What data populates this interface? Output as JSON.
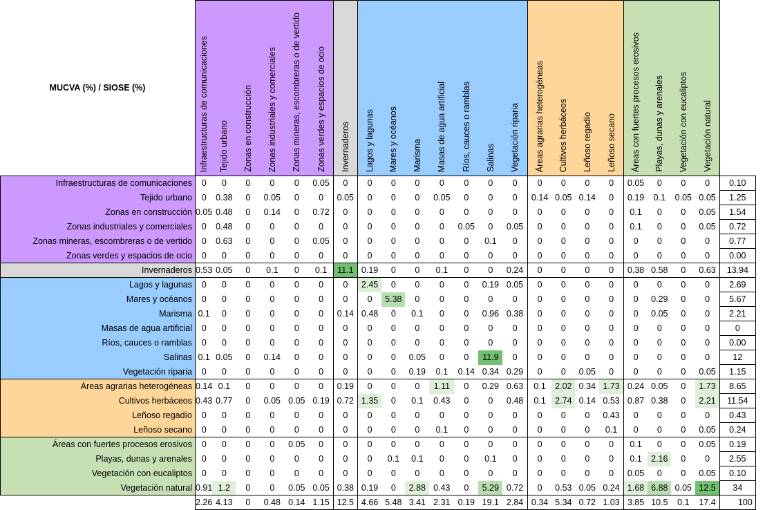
{
  "corner_label": "MUCVA  (%) / SIOSE (%)",
  "columns": [
    "Infraestructuras de comunicaciones",
    "Tejido urbano",
    "Zonas en construcción",
    "Zonas industriales y comerciales",
    "Zonas mineras, escombreras o de vertido",
    "Zonas verdes y espacios de ocio",
    "Invernaderos",
    "Lagos y lagunas",
    "Mares y océanos",
    "Marisma",
    "Masas de agua artificial",
    "Ríos, cauces o ramblas",
    "Salinas",
    "Vegetación riparia",
    "Áreas agrarias heterogéneas",
    "Cultivos herbáceos",
    "Leñoso regadío",
    "Leñoso secano",
    "Áreas con fuertes procesos erosivos",
    "Playas, dunas y arenales",
    "Vegetación con eucaliptos",
    "Vegetación natural"
  ],
  "rows": [
    {
      "label": "Infraestructuras de comunicaciones",
      "values": [
        "0",
        "0",
        "0",
        "0",
        "0",
        "0.05",
        "0",
        "0",
        "0",
        "0",
        "0",
        "0",
        "0",
        "0",
        "0",
        "0",
        "0",
        "0",
        "0.05",
        "0",
        "0",
        "0"
      ],
      "total": "0.10"
    },
    {
      "label": "Tejido urbano",
      "values": [
        "0",
        "0.38",
        "0",
        "0.05",
        "0",
        "0",
        "0.05",
        "0",
        "0",
        "0",
        "0.05",
        "0",
        "0",
        "0",
        "0.14",
        "0.05",
        "0.14",
        "0",
        "0.19",
        "0.1",
        "0.05",
        "0.05"
      ],
      "total": "1.25"
    },
    {
      "label": "Zonas en construcción",
      "values": [
        "0.05",
        "0.48",
        "0",
        "0.14",
        "0",
        "0.72",
        "0",
        "0",
        "0",
        "0",
        "0",
        "0",
        "0",
        "0",
        "0",
        "0",
        "0",
        "0",
        "0.1",
        "0",
        "0",
        "0.05"
      ],
      "total": "1.54"
    },
    {
      "label": "Zonas industriales y comerciales",
      "values": [
        "0",
        "0.48",
        "0",
        "0",
        "0",
        "0",
        "0",
        "0",
        "0",
        "0",
        "0",
        "0.05",
        "0",
        "0.05",
        "0",
        "0",
        "0",
        "0",
        "0.1",
        "0",
        "0",
        "0.05"
      ],
      "total": "0.72"
    },
    {
      "label": "Zonas mineras, escombreras o de vertido",
      "values": [
        "0",
        "0.63",
        "0",
        "0",
        "0",
        "0.05",
        "0",
        "0",
        "0",
        "0",
        "0",
        "0",
        "0.1",
        "0",
        "0",
        "0",
        "0",
        "0",
        "0",
        "0",
        "0",
        "0"
      ],
      "total": "0.77"
    },
    {
      "label": "Zonas verdes y espacios de ocio",
      "values": [
        "0",
        "0",
        "0",
        "0",
        "0",
        "0",
        "0",
        "0",
        "0",
        "0",
        "0",
        "0",
        "0",
        "0",
        "0",
        "0",
        "0",
        "0",
        "0",
        "0",
        "0",
        "0"
      ],
      "total": "0.00"
    },
    {
      "label": "Invernaderos",
      "values": [
        "0.53",
        "0.05",
        "0",
        "0.1",
        "0",
        "0.1",
        "11.1",
        "0.19",
        "0",
        "0",
        "0.1",
        "0",
        "0",
        "0.24",
        "0",
        "0",
        "0",
        "0",
        "0.38",
        "0.58",
        "0",
        "0.63"
      ],
      "total": "13.94"
    },
    {
      "label": "Lagos y lagunas",
      "values": [
        "0",
        "0",
        "0",
        "0",
        "0",
        "0",
        "0",
        "2.45",
        "0",
        "0",
        "0",
        "0",
        "0.19",
        "0.05",
        "0",
        "0",
        "0",
        "0",
        "0",
        "0",
        "0",
        "0"
      ],
      "total": "2.69"
    },
    {
      "label": "Mares y océanos",
      "values": [
        "0",
        "0",
        "0",
        "0",
        "0",
        "0",
        "0",
        "0",
        "5.38",
        "0",
        "0",
        "0",
        "0",
        "0",
        "0",
        "0",
        "0",
        "0",
        "0",
        "0.29",
        "0",
        "0"
      ],
      "total": "5.67"
    },
    {
      "label": "Marisma",
      "values": [
        "0.1",
        "0",
        "0",
        "0",
        "0",
        "0",
        "0.14",
        "0.48",
        "0",
        "0.1",
        "0",
        "0",
        "0.96",
        "0.38",
        "0",
        "0",
        "0",
        "0",
        "0",
        "0.05",
        "0",
        "0"
      ],
      "total": "2.21"
    },
    {
      "label": "Masas de agua artificial",
      "values": [
        "0",
        "0",
        "0",
        "0",
        "0",
        "0",
        "0",
        "0",
        "0",
        "0",
        "0",
        "0",
        "0",
        "0",
        "0",
        "0",
        "0",
        "0",
        "0",
        "0",
        "0",
        "0"
      ],
      "total": "0"
    },
    {
      "label": "Ríos, cauces o ramblas",
      "values": [
        "0",
        "0",
        "0",
        "0",
        "0",
        "0",
        "0",
        "0",
        "0",
        "0",
        "0",
        "0",
        "0",
        "0",
        "0",
        "0",
        "0",
        "0",
        "0",
        "0",
        "0",
        "0"
      ],
      "total": "0.00"
    },
    {
      "label": "Salinas",
      "values": [
        "0.1",
        "0.05",
        "0",
        "0.14",
        "0",
        "0",
        "0",
        "0",
        "0",
        "0.05",
        "0",
        "0",
        "11.9",
        "0",
        "0",
        "0",
        "0",
        "0",
        "0",
        "0",
        "0",
        "0"
      ],
      "total": "12"
    },
    {
      "label": "Vegetación riparia",
      "values": [
        "0",
        "0",
        "0",
        "0",
        "0",
        "0",
        "0",
        "0",
        "0",
        "0.19",
        "0.1",
        "0.14",
        "0.34",
        "0.29",
        "0",
        "0",
        "0.05",
        "0",
        "0",
        "0",
        "0",
        "0.05"
      ],
      "total": "1.15"
    },
    {
      "label": "Áreas agrarias heterogéneas",
      "values": [
        "0.14",
        "0.1",
        "0",
        "0",
        "0",
        "0",
        "0.19",
        "0",
        "0",
        "0",
        "1.11",
        "0",
        "0.29",
        "0.63",
        "0.1",
        "2.02",
        "0.34",
        "1.73",
        "0.24",
        "0.05",
        "0",
        "1.73"
      ],
      "total": "8.65"
    },
    {
      "label": "Cultivos herbáceos",
      "values": [
        "0.43",
        "0.77",
        "0",
        "0.05",
        "0.05",
        "0.19",
        "0.72",
        "1.35",
        "0",
        "0.1",
        "0.43",
        "0",
        "0",
        "0.48",
        "0.1",
        "2.74",
        "0.14",
        "0.53",
        "0.87",
        "0.38",
        "0",
        "2.21"
      ],
      "total": "11.54"
    },
    {
      "label": "Leñoso regadío",
      "values": [
        "0",
        "0",
        "0",
        "0",
        "0",
        "0",
        "0",
        "0",
        "0",
        "0",
        "0",
        "0",
        "0",
        "0",
        "0",
        "0",
        "0",
        "0.43",
        "0",
        "0",
        "0",
        "0"
      ],
      "total": "0.43"
    },
    {
      "label": "Leñoso secano",
      "values": [
        "0",
        "0",
        "0",
        "0",
        "0",
        "0",
        "0",
        "0",
        "0",
        "0",
        "0.1",
        "0",
        "0",
        "0",
        "0",
        "0",
        "0",
        "0.1",
        "0",
        "0",
        "0",
        "0.05"
      ],
      "total": "0.24"
    },
    {
      "label": "Áreas con fuertes procesos erosivos",
      "values": [
        "0",
        "0",
        "0",
        "0",
        "0.05",
        "0",
        "0",
        "0",
        "0",
        "0",
        "0",
        "0",
        "0",
        "0",
        "0",
        "0",
        "0",
        "0",
        "0.1",
        "0",
        "0",
        "0.05"
      ],
      "total": "0.19"
    },
    {
      "label": "Playas, dunas y arenales",
      "values": [
        "0",
        "0",
        "0",
        "0",
        "0",
        "0",
        "0",
        "0",
        "0.1",
        "0.1",
        "0",
        "0",
        "0.1",
        "0",
        "0",
        "0",
        "0",
        "0",
        "0.1",
        "2.16",
        "0",
        "0"
      ],
      "total": "2.55"
    },
    {
      "label": "Vegetación con eucaliptos",
      "values": [
        "0",
        "0",
        "0",
        "0",
        "0",
        "0",
        "0",
        "0",
        "0",
        "0",
        "0",
        "0",
        "0",
        "0",
        "0",
        "0",
        "0",
        "0",
        "0.05",
        "0",
        "0",
        "0.05"
      ],
      "total": "0.10"
    },
    {
      "label": "Vegetación natural",
      "values": [
        "0.91",
        "1.2",
        "0",
        "0",
        "0.05",
        "0.05",
        "0.38",
        "0.19",
        "0",
        "2.88",
        "0.43",
        "0",
        "5.29",
        "0.72",
        "0",
        "0.53",
        "0.05",
        "0.24",
        "1.68",
        "6.88",
        "0.05",
        "12.5"
      ],
      "total": "34"
    }
  ],
  "column_totals": [
    "2.26",
    "4.13",
    "0",
    "0.48",
    "0.14",
    "1.15",
    "12.5",
    "4.66",
    "5.48",
    "3.41",
    "2.31",
    "0.19",
    "19.1",
    "2.84",
    "0.34",
    "5.34",
    "0.72",
    "1.03",
    "3.85",
    "10.5",
    "0.1",
    "17.4"
  ],
  "grand_total": "100",
  "group_colors": {
    "urban": "#cc99ff",
    "greenhouse": "#d9d9d9",
    "water": "#99ccff",
    "agricultural": "#ffd699",
    "natural": "#c6e0b4"
  }
}
